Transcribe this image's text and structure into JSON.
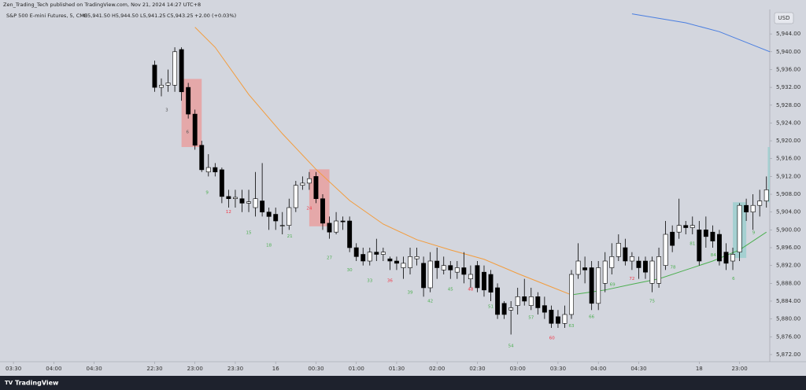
{
  "chart_data": {
    "type": "candlestick",
    "header": "Zen_Trading_Tech published on TradingView.com, Nov 21, 2024 14:27 UTC+8",
    "title": "S&P 500 E-mini Futures, 5, CME",
    "ohlc_readout": [
      "O5,941.50",
      "H5,944.50",
      "L5,941.25",
      "C5,943.25"
    ],
    "change": "+2.00 (+0.03%)",
    "currency": "USD",
    "brand": "TradingView",
    "up_color": "#ffffff",
    "down_color": "#000000",
    "xlim": [
      -2,
      112.5
    ],
    "ylim": [
      5870.4,
      5949.5
    ],
    "yticks": [
      {
        "value": 5872,
        "label": "5,872.00"
      },
      {
        "value": 5876,
        "label": "5,876.00"
      },
      {
        "value": 5880,
        "label": "5,880.00"
      },
      {
        "value": 5884,
        "label": "5,884.00"
      },
      {
        "value": 5888,
        "label": "5,888.00"
      },
      {
        "value": 5892,
        "label": "5,892.00"
      },
      {
        "value": 5896,
        "label": "5,896.00"
      },
      {
        "value": 5900,
        "label": "5,900.00"
      },
      {
        "value": 5904,
        "label": "5,904.00"
      },
      {
        "value": 5908,
        "label": "5,908.00"
      },
      {
        "value": 5912,
        "label": "5,912.00"
      },
      {
        "value": 5916,
        "label": "5,916.00"
      },
      {
        "value": 5920,
        "label": "5,920.00"
      },
      {
        "value": 5924,
        "label": "5,924.00"
      },
      {
        "value": 5928,
        "label": "5,928.00"
      },
      {
        "value": 5932,
        "label": "5,932.00"
      },
      {
        "value": 5936,
        "label": "5,936.00"
      },
      {
        "value": 5940,
        "label": "5,940.00"
      },
      {
        "value": 5944,
        "label": "5,944.00"
      }
    ],
    "xticks": [
      {
        "value": 0,
        "label": "03:30"
      },
      {
        "value": 6,
        "label": "04:00"
      },
      {
        "value": 12,
        "label": "04:30"
      },
      {
        "value": 21,
        "label": "22:30"
      },
      {
        "value": 27,
        "label": "23:00"
      },
      {
        "value": 33,
        "label": "23:30"
      },
      {
        "value": 39,
        "label": "16"
      },
      {
        "value": 45,
        "label": "00:30"
      },
      {
        "value": 51,
        "label": "01:00"
      },
      {
        "value": 57,
        "label": "01:30"
      },
      {
        "value": 63,
        "label": "02:00"
      },
      {
        "value": 69,
        "label": "02:30"
      },
      {
        "value": 75,
        "label": "03:00"
      },
      {
        "value": 81,
        "label": "03:30"
      },
      {
        "value": 87,
        "label": "04:00"
      },
      {
        "value": 93,
        "label": "04:30"
      },
      {
        "value": 102,
        "label": "18"
      },
      {
        "value": 108,
        "label": "23:00"
      }
    ],
    "x": [
      21,
      22,
      23,
      24,
      25,
      26,
      27,
      28,
      29,
      30,
      31,
      32,
      33,
      34,
      35,
      36,
      37,
      38,
      39,
      40,
      41,
      42,
      43,
      44,
      45,
      46,
      47,
      48,
      49,
      50,
      51,
      52,
      53,
      54,
      55,
      56,
      57,
      58,
      59,
      60,
      61,
      62,
      63,
      64,
      65,
      66,
      67,
      68,
      69,
      70,
      71,
      72,
      73,
      74,
      75,
      76,
      77,
      78,
      79,
      80,
      81,
      82,
      83,
      84,
      85,
      86,
      87,
      88,
      89,
      90,
      91,
      92,
      93,
      94,
      95,
      96,
      97,
      98,
      99,
      100,
      101,
      102,
      103,
      104,
      105,
      106,
      107,
      108,
      109,
      110,
      111,
      112
    ],
    "open": [
      5937,
      5932,
      5932.5,
      5932.5,
      5940.5,
      5932,
      5926,
      5919,
      5913,
      5914,
      5913.5,
      5907.5,
      5907,
      5907,
      5906,
      5905,
      5906.5,
      5904,
      5903.5,
      5901,
      5901,
      5905,
      5910,
      5910.5,
      5912,
      5907,
      5901.5,
      5899.5,
      5902,
      5902,
      5896,
      5894.5,
      5893,
      5895,
      5894.5,
      5893.5,
      5893,
      5891.5,
      5891.5,
      5893.5,
      5892.5,
      5887,
      5893,
      5891,
      5892,
      5890.5,
      5891.5,
      5889,
      5892,
      5890.5,
      5890,
      5887,
      5883.5,
      5882,
      5883,
      5885,
      5883,
      5885,
      5883,
      5882,
      5880.5,
      5879,
      5881,
      5890,
      5891.5,
      5891.5,
      5883.5,
      5888,
      5891.5,
      5894,
      5896,
      5893,
      5893,
      5893,
      5888,
      5888,
      5892,
      5899.5,
      5899.5,
      5901,
      5900.5,
      5900,
      5900,
      5899.5,
      5899,
      5895,
      5893,
      5895,
      5905.5,
      5904,
      5905.5,
      5906.5
    ],
    "high": [
      5938,
      5934,
      5936,
      5941,
      5941,
      5933,
      5927,
      5920,
      5917,
      5915,
      5914,
      5909,
      5909,
      5909,
      5909,
      5913,
      5915,
      5905,
      5905,
      5904,
      5907,
      5911,
      5912,
      5913,
      5913,
      5908,
      5903,
      5904,
      5903,
      5903,
      5897,
      5896,
      5896,
      5898,
      5896,
      5894,
      5894,
      5894,
      5896,
      5896,
      5894,
      5895,
      5896,
      5894,
      5893,
      5893,
      5895,
      5892,
      5893,
      5892,
      5891,
      5888,
      5884,
      5884,
      5887,
      5889,
      5887,
      5886,
      5885,
      5883,
      5882,
      5883,
      5891,
      5897,
      5894,
      5893,
      5893,
      5895,
      5897,
      5899,
      5898,
      5895,
      5894,
      5894,
      5894,
      5896,
      5902,
      5901,
      5907,
      5902,
      5903,
      5902,
      5903,
      5901,
      5900,
      5897,
      5896,
      5906,
      5907,
      5908,
      5909,
      5912
    ],
    "low": [
      5931,
      5930,
      5931,
      5931,
      5929,
      5925,
      5918,
      5913,
      5912,
      5912,
      5906,
      5905,
      5905,
      5904,
      5904,
      5903,
      5903,
      5900,
      5900,
      5899,
      5900,
      5904,
      5909,
      5909,
      5906,
      5900,
      5898,
      5899,
      5900,
      5895,
      5893,
      5892,
      5892,
      5893,
      5893,
      5891,
      5891,
      5889,
      5890,
      5892,
      5885,
      5886,
      5889,
      5890,
      5889,
      5889,
      5888,
      5887,
      5886,
      5885,
      5884,
      5880,
      5880,
      5876.5,
      5881,
      5883,
      5882,
      5881,
      5880,
      5878,
      5878,
      5878,
      5880,
      5889,
      5888,
      5882,
      5882,
      5886,
      5890,
      5893,
      5892,
      5891,
      5889,
      5889,
      5886,
      5887,
      5891,
      5895,
      5898,
      5899,
      5899,
      5892,
      5896,
      5896,
      5892,
      5891,
      5891,
      5893,
      5902,
      5900,
      5903,
      5905
    ],
    "close": [
      5932,
      5932.5,
      5933,
      5940,
      5931,
      5926,
      5919,
      5913.5,
      5914,
      5913,
      5907.5,
      5907,
      5907.3,
      5906,
      5906.3,
      5907,
      5904,
      5903,
      5902,
      5901,
      5905,
      5910,
      5910.5,
      5911.5,
      5907,
      5901.5,
      5899.5,
      5902,
      5901.8,
      5896,
      5894,
      5893,
      5895,
      5894.5,
      5895,
      5893,
      5892.5,
      5892.5,
      5894,
      5894,
      5887,
      5893,
      5891.5,
      5892,
      5891,
      5891.5,
      5890,
      5890,
      5887,
      5886.5,
      5886,
      5881,
      5881,
      5882.5,
      5885,
      5884,
      5885,
      5882.5,
      5881.5,
      5879,
      5879,
      5881,
      5890,
      5893,
      5891,
      5883.5,
      5891.5,
      5893,
      5894,
      5897,
      5893,
      5894,
      5891.5,
      5890.5,
      5893,
      5894,
      5899,
      5896.5,
      5901,
      5900.5,
      5901,
      5893,
      5898.5,
      5897.5,
      5893,
      5892.5,
      5894.5,
      5905.5,
      5904,
      5905.5,
      5906.5,
      5909
    ],
    "lines": [
      {
        "color": "#f39c3c",
        "x": [
          27,
          30,
          35,
          40,
          45,
          50,
          55,
          60,
          65,
          70,
          75,
          80,
          83
        ],
        "values": [
          5945.5,
          5941,
          5930.4,
          5921.6,
          5913.6,
          5906.6,
          5901.3,
          5897.8,
          5895.5,
          5893.4,
          5890.2,
          5887.2,
          5885.4
        ]
      },
      {
        "color": "#4a7ee0",
        "x": [
          92,
          100,
          105,
          110,
          112.5
        ],
        "values": [
          5948.5,
          5946.5,
          5944.5,
          5941.5,
          5940
        ]
      },
      {
        "color": "#4caf50",
        "x": [
          83,
          88,
          92,
          96,
          100,
          104,
          108,
          112
        ],
        "values": [
          5885.4,
          5886.5,
          5887.8,
          5889,
          5891,
          5893,
          5895.5,
          5899.5
        ]
      }
    ],
    "zones": [
      {
        "color": "#e8a0a0",
        "x": [
          25,
          28
        ],
        "values": [
          5933.9,
          5918.6
        ]
      },
      {
        "color": "#e8a0a0",
        "x": [
          44,
          47
        ],
        "values": [
          5913.6,
          5900.8
        ]
      },
      {
        "color": "#9ccfcf",
        "x": [
          107,
          109
        ],
        "values": [
          5906.2,
          5893.7
        ]
      },
      {
        "color": "#9ccfcf",
        "x": [
          112.2,
          113
        ],
        "values": [
          5918.6,
          5906.2
        ]
      }
    ],
    "annotations": [
      {
        "text": "3",
        "color": "#555555",
        "x": 22.8,
        "y": 5926.9
      },
      {
        "text": "6",
        "color": "#555555",
        "x": 25.9,
        "y": 5922
      },
      {
        "text": "9",
        "color": "#4caf50",
        "x": 28.8,
        "y": 5908.4
      },
      {
        "text": "12",
        "color": "#f23645",
        "x": 32,
        "y": 5904
      },
      {
        "text": "15",
        "color": "#4caf50",
        "x": 35,
        "y": 5899.4
      },
      {
        "text": "18",
        "color": "#4caf50",
        "x": 38,
        "y": 5896.5
      },
      {
        "text": "21",
        "color": "#4caf50",
        "x": 41.1,
        "y": 5898.6
      },
      {
        "text": "24",
        "color": "#f23645",
        "x": 44,
        "y": 5904.8
      },
      {
        "text": "27",
        "color": "#4caf50",
        "x": 47,
        "y": 5893.7
      },
      {
        "text": "30",
        "color": "#4caf50",
        "x": 50,
        "y": 5891
      },
      {
        "text": "33",
        "color": "#4caf50",
        "x": 53,
        "y": 5888.6
      },
      {
        "text": "36",
        "color": "#f23645",
        "x": 56,
        "y": 5888.6
      },
      {
        "text": "39",
        "color": "#4caf50",
        "x": 59,
        "y": 5885.9
      },
      {
        "text": "42",
        "color": "#4caf50",
        "x": 62,
        "y": 5884
      },
      {
        "text": "45",
        "color": "#4caf50",
        "x": 65,
        "y": 5886.6
      },
      {
        "text": "48",
        "color": "#f23645",
        "x": 68,
        "y": 5886.6
      },
      {
        "text": "51",
        "color": "#4caf50",
        "x": 71,
        "y": 5882.8
      },
      {
        "text": "54",
        "color": "#4caf50",
        "x": 74,
        "y": 5873.9
      },
      {
        "text": "57",
        "color": "#4caf50",
        "x": 77,
        "y": 5880.3
      },
      {
        "text": "60",
        "color": "#f23645",
        "x": 80.1,
        "y": 5875.7
      },
      {
        "text": "63",
        "color": "#4caf50",
        "x": 83,
        "y": 5878.4
      },
      {
        "text": "66",
        "color": "#4caf50",
        "x": 86,
        "y": 5880.5
      },
      {
        "text": "69",
        "color": "#4caf50",
        "x": 89.1,
        "y": 5887.7
      },
      {
        "text": "72",
        "color": "#f23645",
        "x": 92,
        "y": 5889
      },
      {
        "text": "75",
        "color": "#4caf50",
        "x": 95,
        "y": 5884
      },
      {
        "text": "78",
        "color": "#4caf50",
        "x": 98.1,
        "y": 5891.6
      },
      {
        "text": "81",
        "color": "#4caf50",
        "x": 101,
        "y": 5896.9
      },
      {
        "text": "84",
        "color": "#4caf50",
        "x": 104.1,
        "y": 5894.3
      },
      {
        "text": "6",
        "color": "#4caf50",
        "x": 107.1,
        "y": 5889
      },
      {
        "text": "9",
        "color": "#4caf50",
        "x": 110.1,
        "y": 5899.4
      }
    ]
  }
}
